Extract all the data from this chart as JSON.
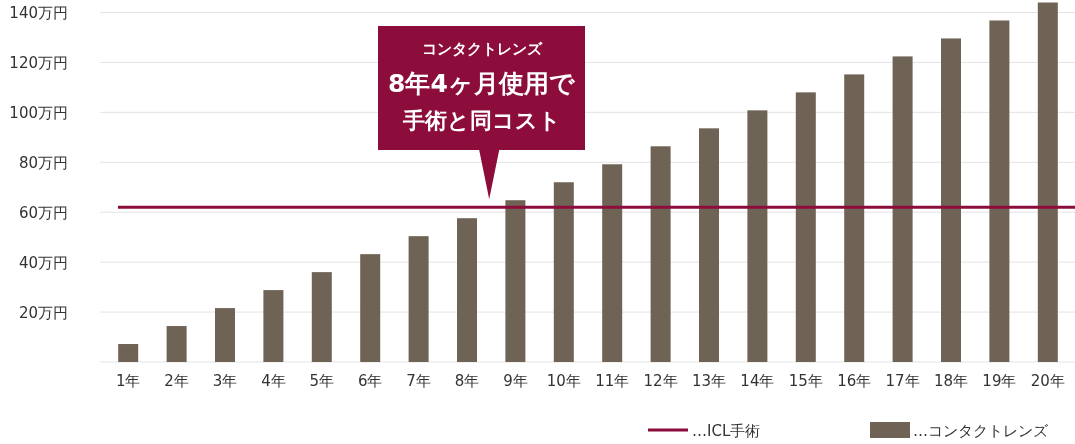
{
  "chart_data": {
    "type": "bar",
    "categories": [
      "1年",
      "2年",
      "3年",
      "4年",
      "5年",
      "6年",
      "7年",
      "8年",
      "9年",
      "10年",
      "11年",
      "12年",
      "13年",
      "14年",
      "15年",
      "16年",
      "17年",
      "18年",
      "19年",
      "20年"
    ],
    "series": [
      {
        "name": "…コンタクトレンズ",
        "color": "#6f6355",
        "values": [
          7.2,
          14.4,
          21.6,
          28.8,
          36,
          43.2,
          50.4,
          57.6,
          64.8,
          72,
          79.2,
          86.4,
          93.6,
          100.8,
          108,
          115.2,
          122.4,
          129.6,
          136.8,
          144
        ]
      }
    ],
    "ylim": [
      0,
      145
    ],
    "yticks": [
      {
        "value": 0,
        "label": null
      },
      {
        "value": 20,
        "label": "20万円"
      },
      {
        "value": 40,
        "label": "40万円"
      },
      {
        "value": 60,
        "label": "60万円"
      },
      {
        "value": 80,
        "label": "80万円"
      },
      {
        "value": 100,
        "label": "100万円"
      },
      {
        "value": 120,
        "label": "120万円"
      },
      {
        "value": 140,
        "label": "140万円"
      }
    ],
    "grid": "y",
    "legend": "bottom right",
    "ref_lines": [
      {
        "axis": "y",
        "value": 62,
        "label": "…ICL手術",
        "color": "#8c0c3c"
      }
    ],
    "annotations": [
      "コンタクトレンズ",
      "8年4ヶ月使用で",
      "手術と同コスト"
    ]
  }
}
